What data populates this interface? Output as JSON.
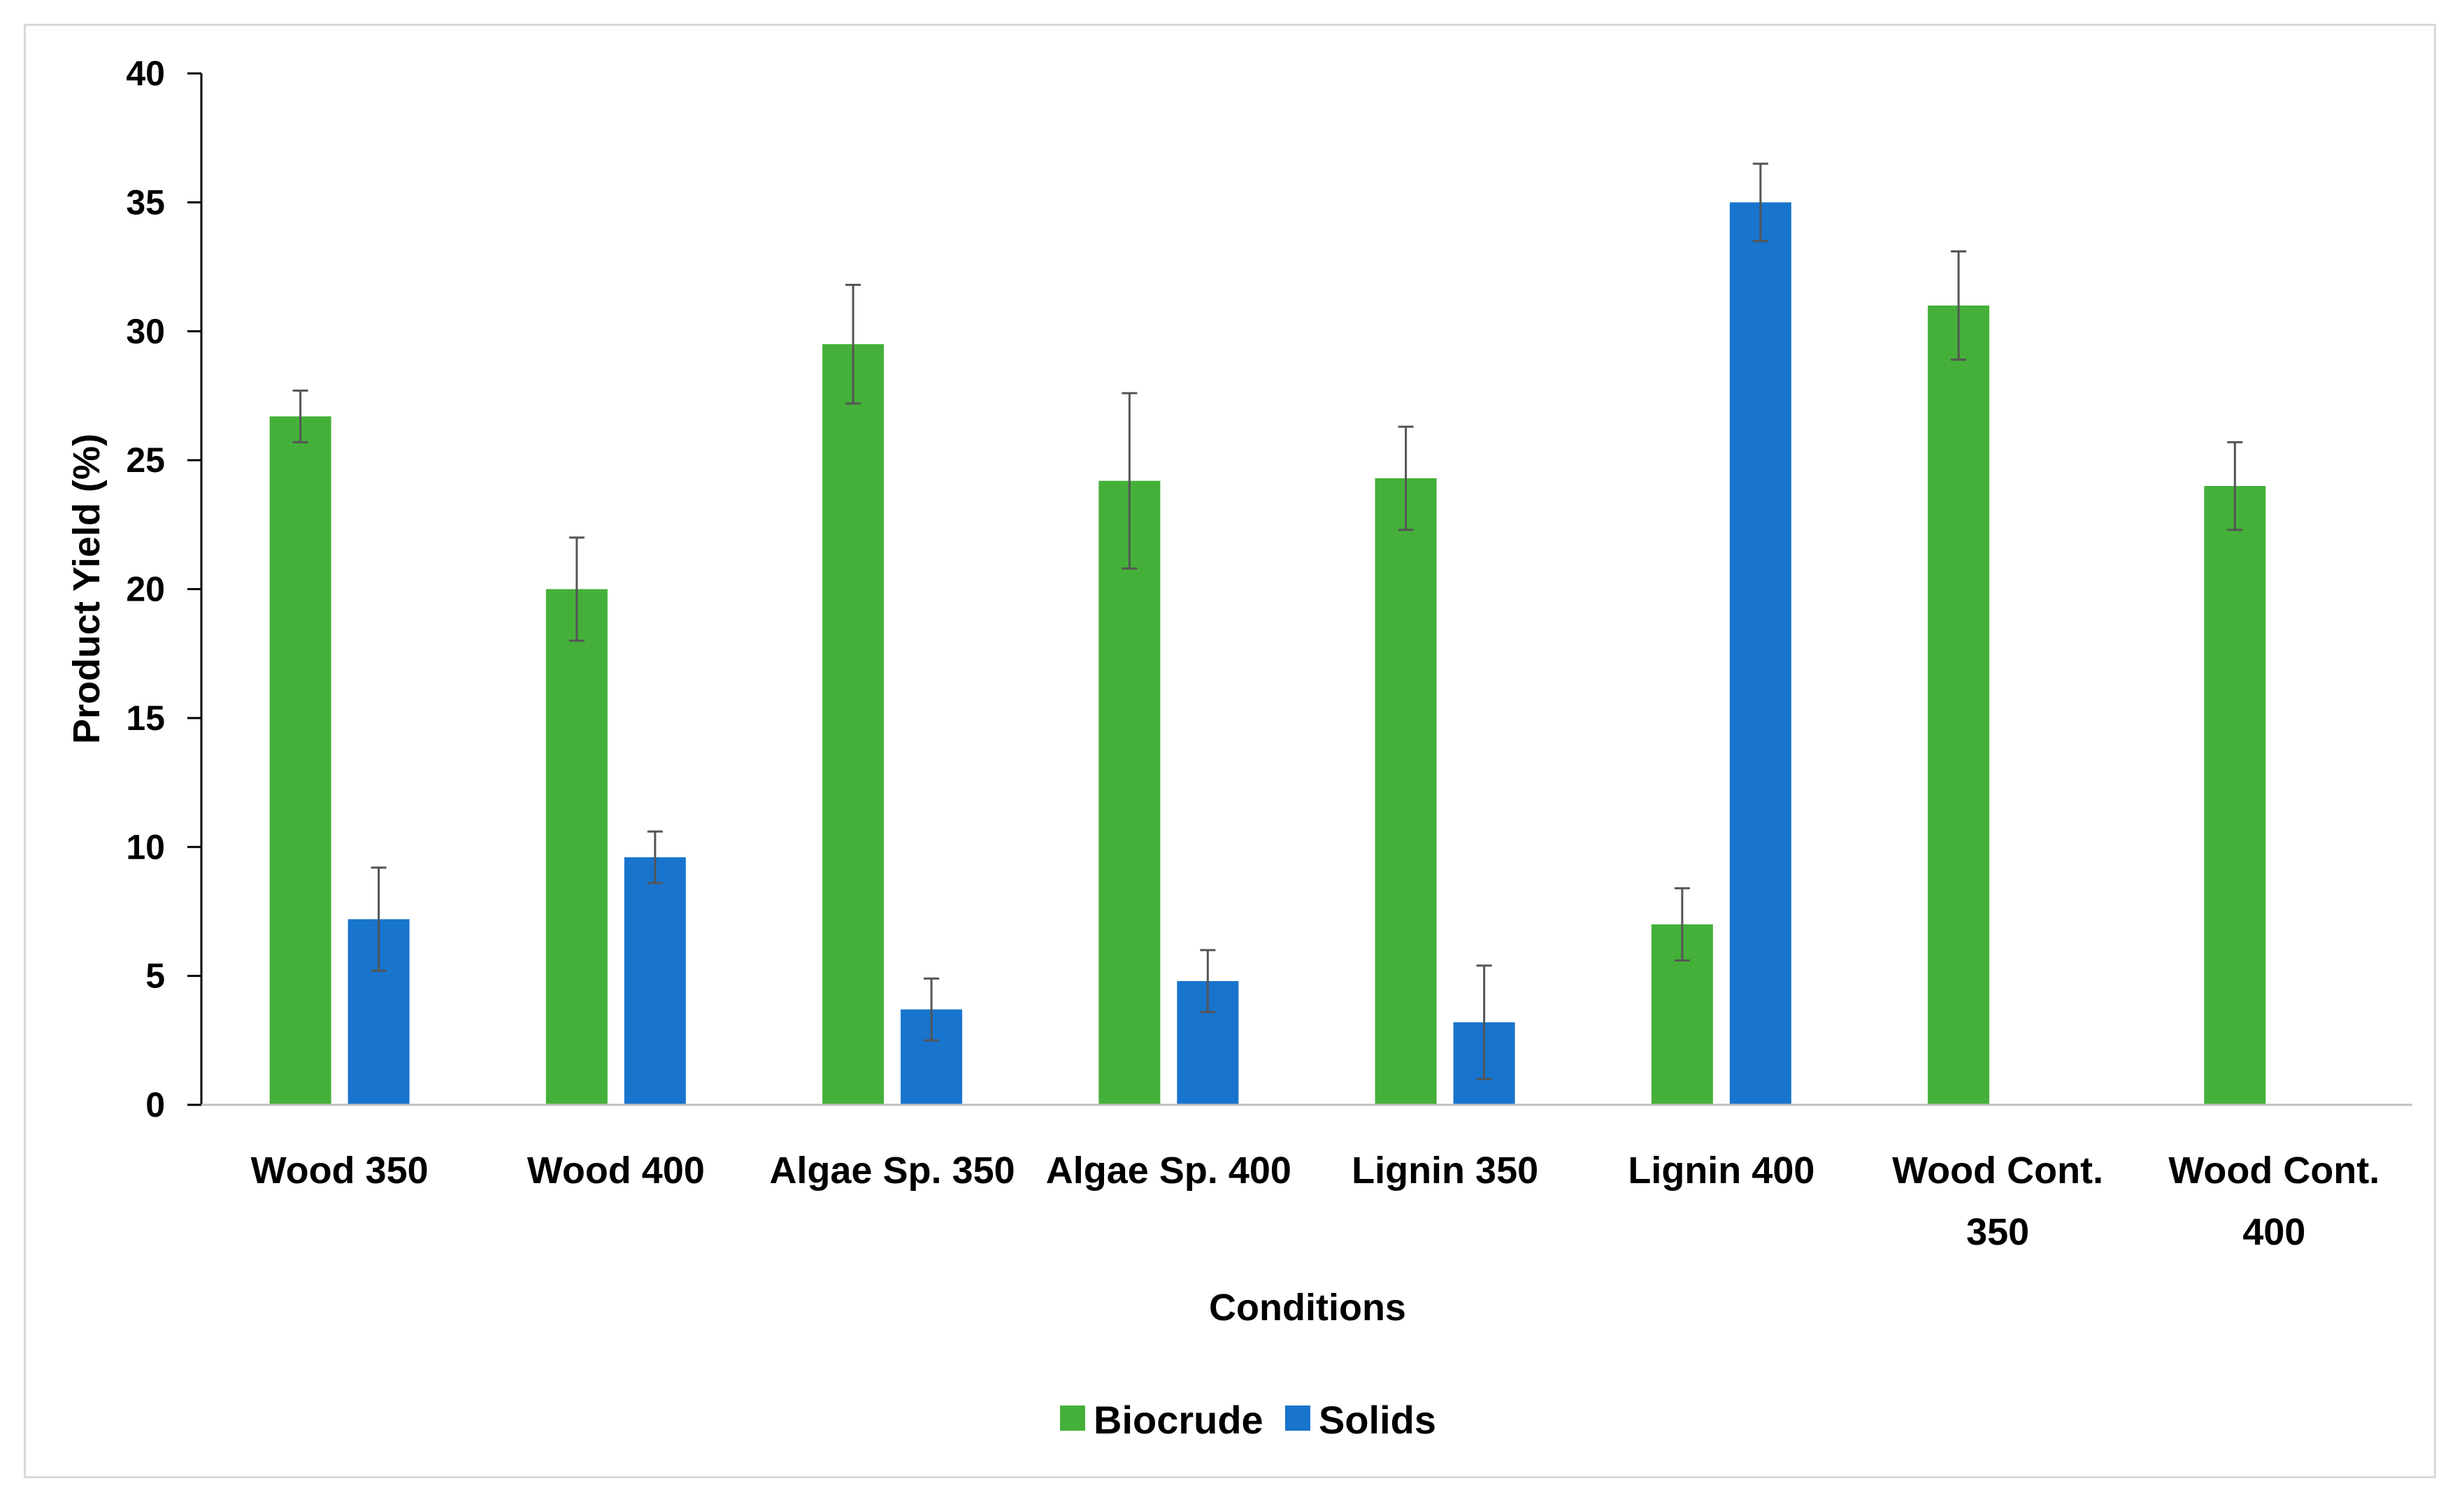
{
  "chart_data": {
    "type": "bar",
    "title": "",
    "xlabel": "Conditions",
    "ylabel": "Product Yield (%)",
    "ylim": [
      0,
      40
    ],
    "yticks": [
      0,
      5,
      10,
      15,
      20,
      25,
      30,
      35,
      40
    ],
    "categories": [
      [
        "Wood 350"
      ],
      [
        "Wood 400"
      ],
      [
        "Algae Sp. 350"
      ],
      [
        "Algae Sp. 400"
      ],
      [
        "Lignin 350"
      ],
      [
        "Lignin 400"
      ],
      [
        "Wood Cont.",
        "350"
      ],
      [
        "Wood Cont.",
        "400"
      ]
    ],
    "series": [
      {
        "name": "Biocrude",
        "color": "#44b039",
        "values": [
          26.7,
          20.0,
          29.5,
          24.2,
          24.3,
          7.0,
          31.0,
          24.0
        ],
        "errors": [
          1.0,
          2.0,
          2.3,
          3.4,
          2.0,
          1.4,
          2.1,
          1.7
        ]
      },
      {
        "name": "Solids",
        "color": "#1874cd",
        "values": [
          7.2,
          9.6,
          3.7,
          4.8,
          3.2,
          35.0,
          null,
          null
        ],
        "errors": [
          2.0,
          1.0,
          1.2,
          1.2,
          2.2,
          1.5,
          null,
          null
        ]
      }
    ],
    "legend_position": "bottom-center",
    "grid": false
  }
}
